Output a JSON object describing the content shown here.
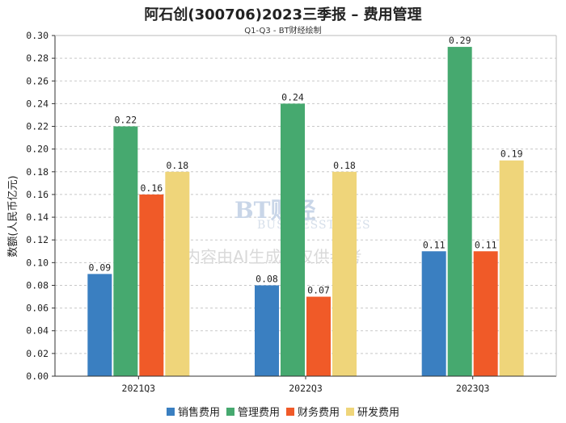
{
  "chart_data": {
    "type": "bar",
    "title": "阿石创(300706)2023三季报 – 费用管理",
    "subtitle": "Q1-Q3 - BT财经绘制",
    "xlabel": "",
    "ylabel": "数额(人民币亿元)",
    "ylim": [
      0,
      0.3
    ],
    "yticks": [
      "0.00",
      "0.02",
      "0.04",
      "0.06",
      "0.08",
      "0.10",
      "0.12",
      "0.14",
      "0.16",
      "0.18",
      "0.20",
      "0.22",
      "0.24",
      "0.26",
      "0.28",
      "0.30"
    ],
    "grid": true,
    "legend_position": "bottom",
    "categories": [
      "2021Q3",
      "2022Q3",
      "2023Q3"
    ],
    "series": [
      {
        "name": "销售费用",
        "color": "#3a7fc1",
        "values": [
          0.09,
          0.08,
          0.11
        ]
      },
      {
        "name": "管理费用",
        "color": "#46a96f",
        "values": [
          0.22,
          0.24,
          0.29
        ]
      },
      {
        "name": "财务费用",
        "color": "#f05a28",
        "values": [
          0.16,
          0.07,
          0.11
        ]
      },
      {
        "name": "研发费用",
        "color": "#efd57a",
        "values": [
          0.18,
          0.18,
          0.19
        ]
      }
    ]
  },
  "watermark": {
    "logo": "BT财经",
    "sub": "BUSINESSTIMES",
    "notice": "内容由AI生成，仅供参考"
  }
}
